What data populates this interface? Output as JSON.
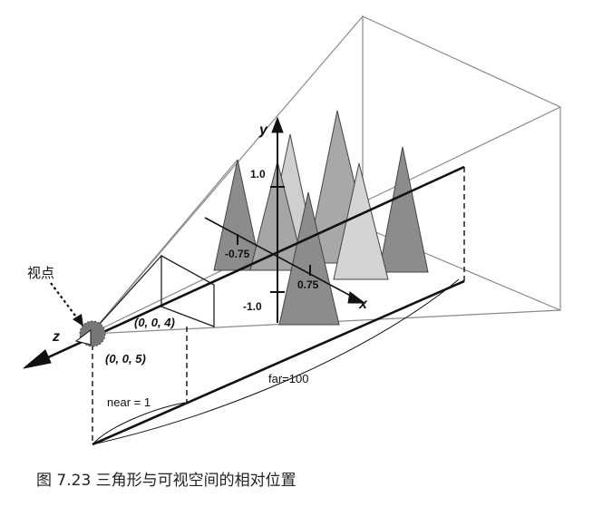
{
  "labels": {
    "viewpoint": "视点",
    "axis_y": "y",
    "axis_x": "x",
    "axis_z": "z",
    "tick_y_pos": "1.0",
    "tick_y_neg": "-1.0",
    "tick_x_neg": "-0.75",
    "tick_x_pos": "0.75",
    "point_near": "(0, 0, 4)",
    "point_eye": "(0, 0, 5)",
    "near": "near = 1",
    "far": "far=100"
  },
  "caption": "图 7.23  三角形与可视空间的相对位置",
  "colors": {
    "triangle_dark": "#8c8c8c",
    "triangle_mid": "#a8a8a8",
    "triangle_light": "#cfcfcf",
    "frustum_line": "#8a8a8a",
    "axis_line": "#111111"
  }
}
